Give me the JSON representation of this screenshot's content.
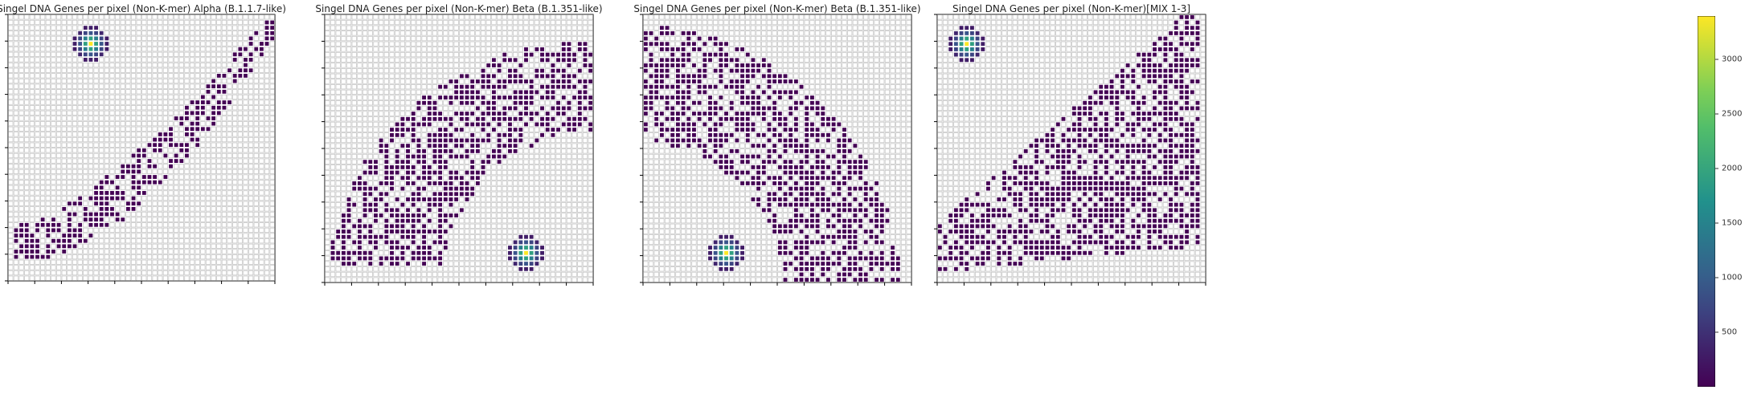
{
  "chart_data": [
    {
      "type": "heatmap",
      "title": "Singel DNA Genes per pixel  (Non-K-mer) Alpha (B.1.1.7-like)",
      "grid_size": [
        50,
        50
      ],
      "shape": "crescent-right",
      "hotspot_center": [
        15,
        5
      ],
      "hotspot_peak": 3400
    },
    {
      "type": "heatmap",
      "title": "Singel DNA Genes per pixel  (Non-K-mer) Beta (B.1.351-like)",
      "grid_size": [
        50,
        50
      ],
      "shape": "arc-upper-left",
      "hotspot_center": [
        37,
        44
      ],
      "hotspot_peak": 3400
    },
    {
      "type": "heatmap",
      "title": "Singel DNA Genes per pixel  (Non-K-mer) Beta (B.1.351-like)",
      "grid_size": [
        50,
        50
      ],
      "shape": "arc-upper-right",
      "hotspot_center": [
        15,
        44
      ],
      "hotspot_peak": 3400
    },
    {
      "type": "heatmap",
      "title": "Singel DNA Genes per pixel  (Non-K-mer)[MIX 1-3]",
      "grid_size": [
        50,
        50
      ],
      "shape": "wedge-lower-right",
      "hotspot_center": [
        5,
        5
      ],
      "hotspot_peak": 3400
    }
  ],
  "colorbar": {
    "colormap": "viridis",
    "range": [
      1,
      3400
    ],
    "ticks": [
      "500",
      "1000",
      "1500",
      "2000",
      "2500",
      "3000"
    ],
    "tick_values": [
      500,
      1000,
      1500,
      2000,
      2500,
      3000
    ]
  },
  "colors": {
    "low_cell": "#440154",
    "empty_cell": "#ffffff",
    "grid_line": "#c8c8c8"
  }
}
